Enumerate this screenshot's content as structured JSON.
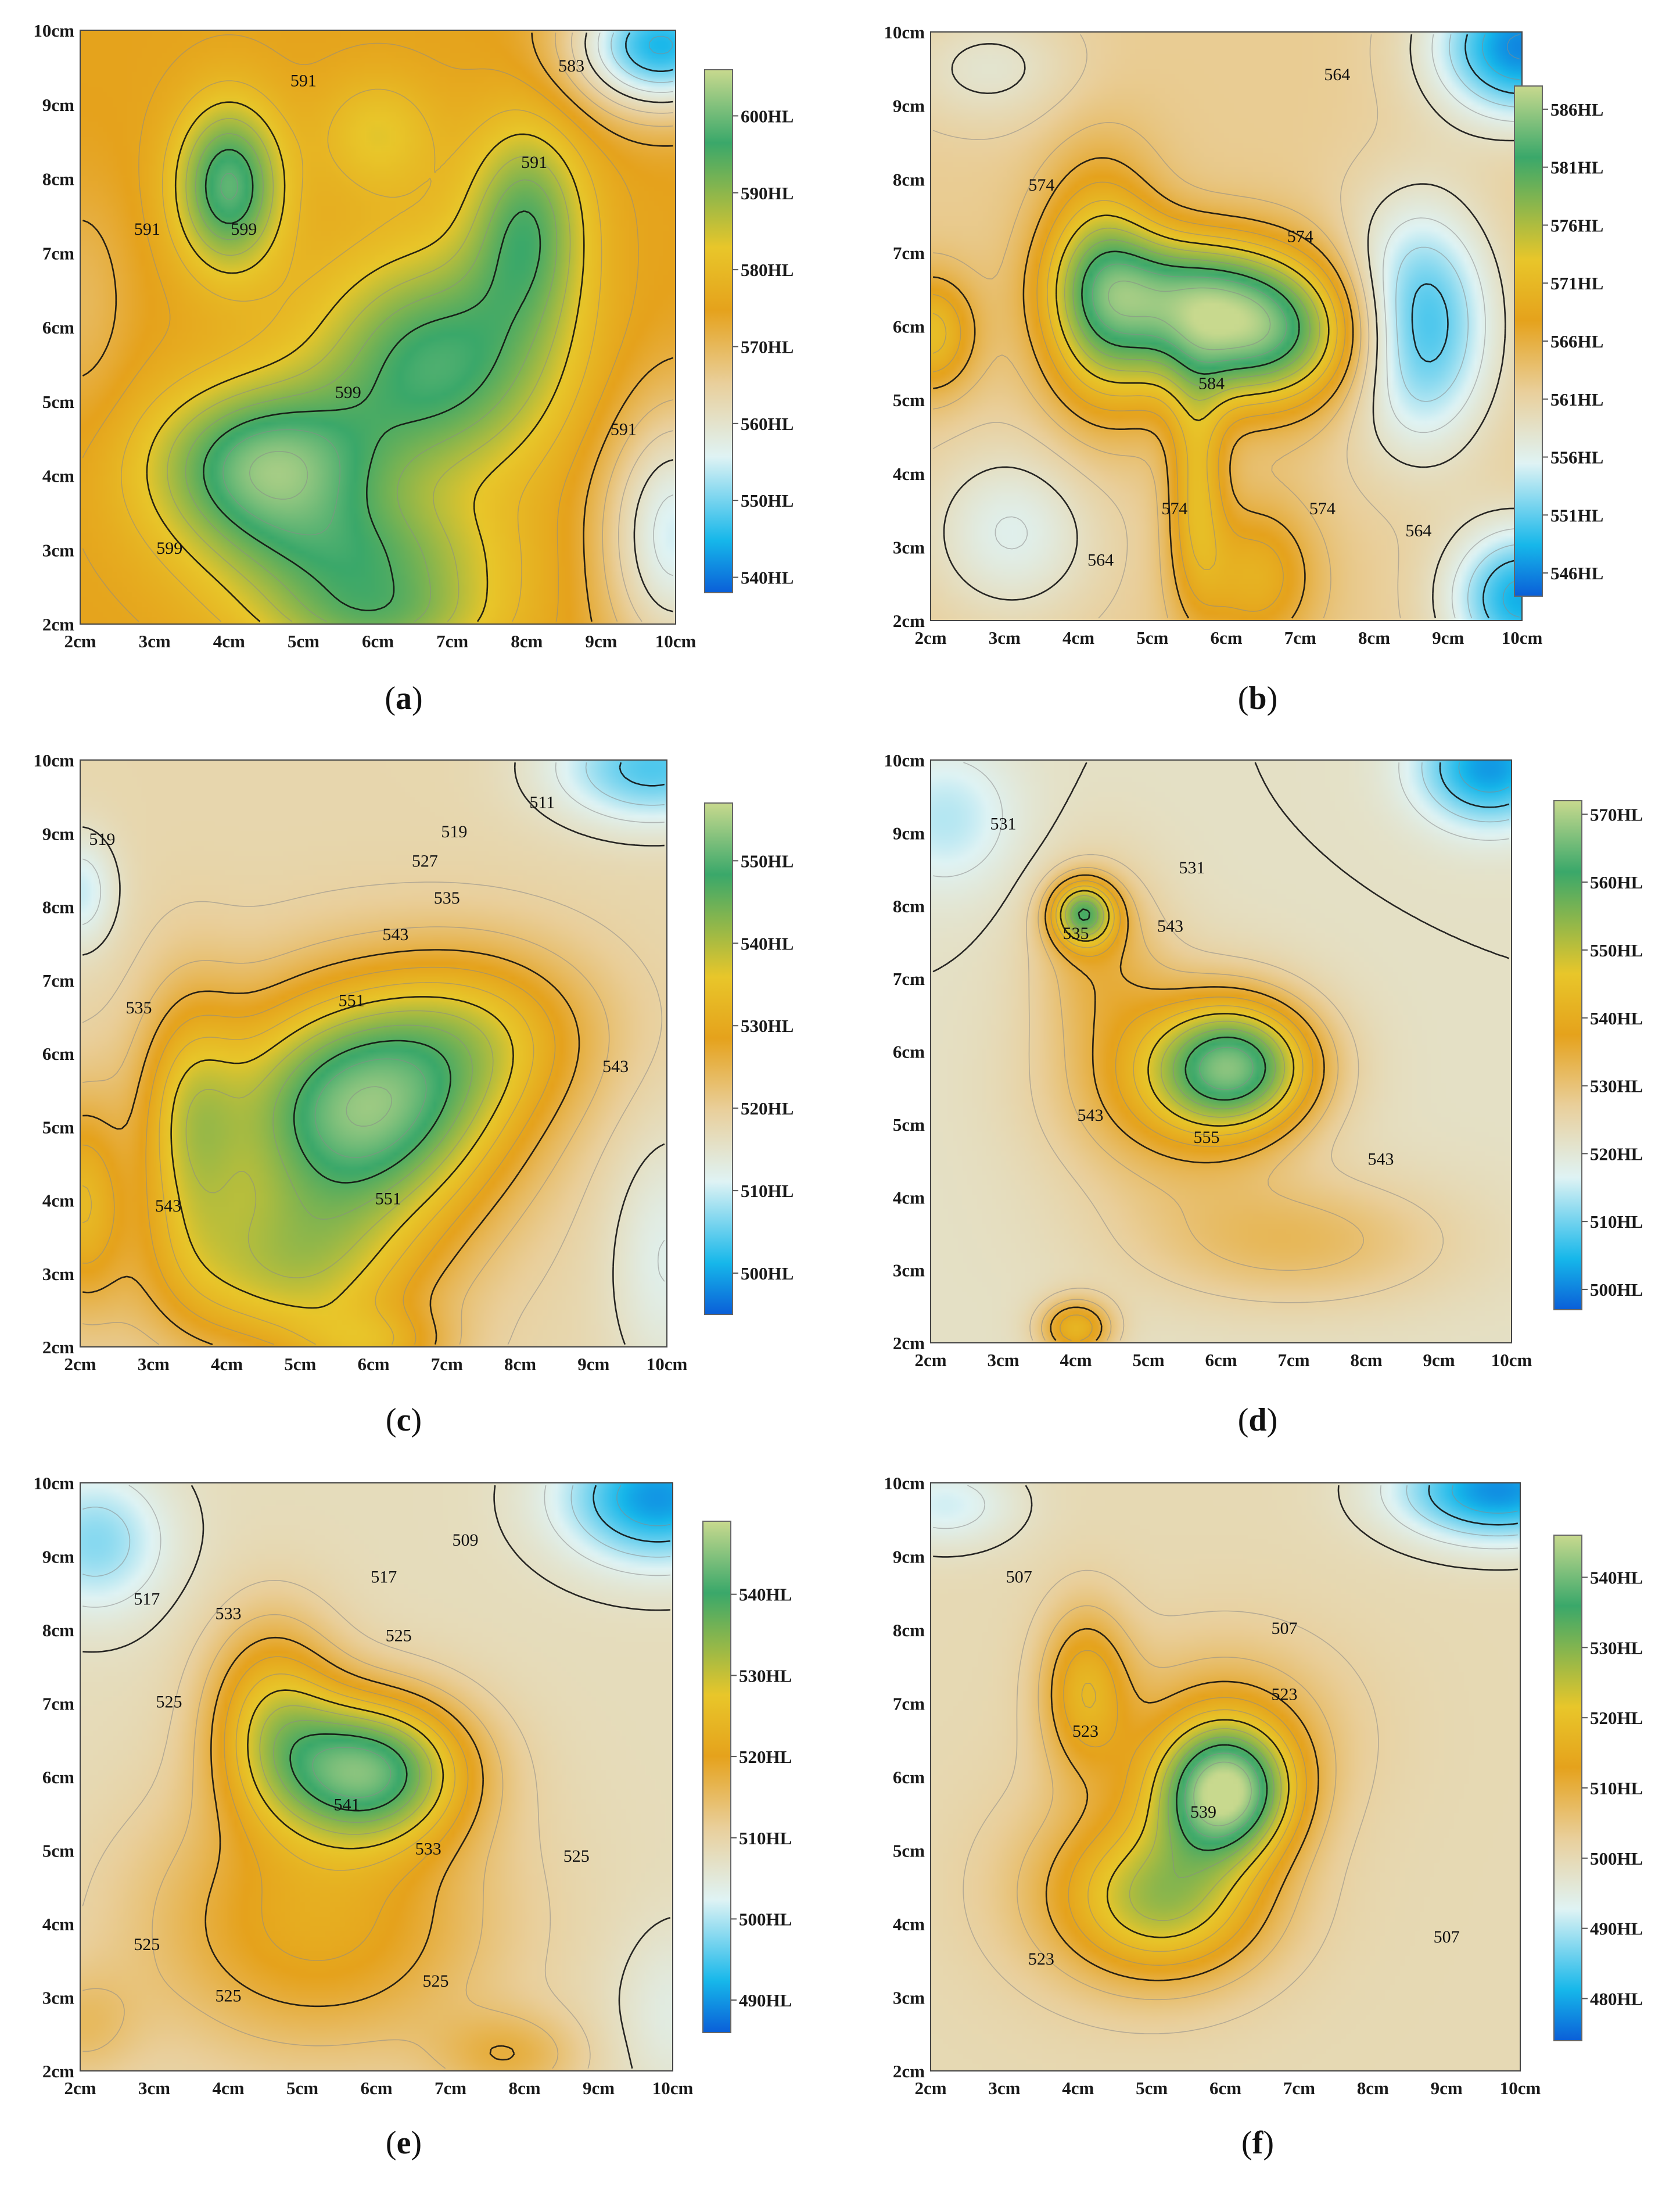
{
  "colors": {
    "scale_low": "#0a5fd8",
    "scale_light": "#dff3f4",
    "scale_sand": "#e9cf9b",
    "scale_orange": "#e5a21c",
    "scale_yellow": "#e8c62a",
    "scale_green": "#3aa86a",
    "scale_top": "#c8d98e",
    "contour_major": "#111111",
    "contour_minor": "#8a8a8a"
  },
  "chart_data": [
    {
      "type": "heatmap",
      "panel": "a",
      "x_ticks": [
        "2cm",
        "3cm",
        "4cm",
        "5cm",
        "6cm",
        "7cm",
        "8cm",
        "9cm",
        "10cm"
      ],
      "y_ticks": [
        "2cm",
        "3cm",
        "4cm",
        "5cm",
        "6cm",
        "7cm",
        "8cm",
        "9cm",
        "10cm"
      ],
      "xlim": [
        2,
        10
      ],
      "ylim": [
        2,
        10
      ],
      "colorbar": {
        "range": [
          538,
          606
        ],
        "ticks": [
          "540HL",
          "550HL",
          "560HL",
          "570HL",
          "580HL",
          "590HL",
          "600HL"
        ]
      },
      "contour_labels": [
        {
          "text": "591",
          "x": 5.0,
          "y": 9.3
        },
        {
          "text": "583",
          "x": 8.6,
          "y": 9.5
        },
        {
          "text": "599",
          "x": 4.2,
          "y": 7.3
        },
        {
          "text": "591",
          "x": 2.9,
          "y": 7.3
        },
        {
          "text": "591",
          "x": 8.1,
          "y": 8.2
        },
        {
          "text": "599",
          "x": 5.6,
          "y": 5.1
        },
        {
          "text": "591",
          "x": 9.3,
          "y": 4.6
        },
        {
          "text": "599",
          "x": 3.2,
          "y": 3.0
        }
      ],
      "field": {
        "base": 575,
        "bumps": [
          [
            4.5,
            4.1,
            26,
            1.5,
            1.1
          ],
          [
            4.0,
            7.9,
            24,
            0.7,
            1.1
          ],
          [
            6.8,
            5.5,
            22,
            1.6,
            1.5
          ],
          [
            8.0,
            7.4,
            18,
            0.8,
            1.4
          ],
          [
            5.8,
            2.8,
            16,
            1.8,
            0.9
          ],
          [
            6.0,
            8.6,
            8,
            0.8,
            0.8
          ],
          [
            10.0,
            3.2,
            -20,
            1.0,
            1.8
          ],
          [
            9.8,
            9.8,
            -30,
            1.2,
            0.9
          ],
          [
            2.0,
            6.3,
            -5,
            0.7,
            1.6
          ],
          [
            6.0,
            2.0,
            10,
            1.5,
            0.6
          ]
        ]
      }
    },
    {
      "type": "heatmap",
      "panel": "b",
      "x_ticks": [
        "2cm",
        "3cm",
        "4cm",
        "5cm",
        "6cm",
        "7cm",
        "8cm",
        "9cm",
        "10cm"
      ],
      "y_ticks": [
        "2cm",
        "3cm",
        "4cm",
        "5cm",
        "6cm",
        "7cm",
        "8cm",
        "9cm",
        "10cm"
      ],
      "xlim": [
        2,
        10
      ],
      "ylim": [
        2,
        10
      ],
      "colorbar": {
        "range": [
          544,
          588
        ],
        "ticks": [
          "546HL",
          "551HL",
          "556HL",
          "561HL",
          "566HL",
          "571HL",
          "576HL",
          "581HL",
          "586HL"
        ]
      },
      "contour_labels": [
        {
          "text": "564",
          "x": 7.5,
          "y": 9.4
        },
        {
          "text": "574",
          "x": 3.5,
          "y": 7.9
        },
        {
          "text": "574",
          "x": 7.0,
          "y": 7.2
        },
        {
          "text": "584",
          "x": 5.8,
          "y": 5.2
        },
        {
          "text": "574",
          "x": 5.3,
          "y": 3.5
        },
        {
          "text": "564",
          "x": 4.3,
          "y": 2.8
        },
        {
          "text": "574",
          "x": 7.3,
          "y": 3.5
        },
        {
          "text": "564",
          "x": 8.6,
          "y": 3.2
        }
      ],
      "field": {
        "base": 562,
        "bumps": [
          [
            6.3,
            5.9,
            22,
            1.6,
            1.0
          ],
          [
            4.3,
            6.5,
            14,
            0.8,
            1.6
          ],
          [
            5.4,
            6.6,
            10,
            1.4,
            0.8
          ],
          [
            2.0,
            5.9,
            10,
            0.6,
            0.8
          ],
          [
            5.6,
            3.8,
            9,
            0.4,
            1.6
          ],
          [
            6.4,
            2.6,
            8,
            0.8,
            1.0
          ],
          [
            8.6,
            6.0,
            -14,
            1.0,
            1.6
          ],
          [
            10.0,
            9.8,
            -16,
            1.2,
            1.0
          ],
          [
            10.0,
            2.3,
            -14,
            1.0,
            1.0
          ],
          [
            3.1,
            3.2,
            -6,
            1.2,
            1.2
          ],
          [
            2.8,
            9.5,
            -4,
            1.2,
            0.8
          ]
        ]
      }
    },
    {
      "type": "heatmap",
      "panel": "c",
      "x_ticks": [
        "2cm",
        "3cm",
        "4cm",
        "5cm",
        "6cm",
        "7cm",
        "8cm",
        "9cm",
        "10cm"
      ],
      "y_ticks": [
        "2cm",
        "3cm",
        "4cm",
        "5cm",
        "6cm",
        "7cm",
        "8cm",
        "9cm",
        "10cm"
      ],
      "xlim": [
        2,
        10
      ],
      "ylim": [
        2,
        10
      ],
      "colorbar": {
        "range": [
          495,
          557
        ],
        "ticks": [
          "500HL",
          "510HL",
          "520HL",
          "530HL",
          "540HL",
          "550HL"
        ]
      },
      "contour_labels": [
        {
          "text": "511",
          "x": 8.3,
          "y": 9.4
        },
        {
          "text": "519",
          "x": 7.1,
          "y": 9.0
        },
        {
          "text": "519",
          "x": 2.3,
          "y": 8.9
        },
        {
          "text": "527",
          "x": 6.7,
          "y": 8.6
        },
        {
          "text": "535",
          "x": 7.0,
          "y": 8.1
        },
        {
          "text": "543",
          "x": 6.3,
          "y": 7.6
        },
        {
          "text": "551",
          "x": 5.7,
          "y": 6.7
        },
        {
          "text": "535",
          "x": 2.8,
          "y": 6.6
        },
        {
          "text": "551",
          "x": 6.2,
          "y": 4.0
        },
        {
          "text": "543",
          "x": 9.3,
          "y": 5.8
        },
        {
          "text": "543",
          "x": 3.2,
          "y": 3.9
        }
      ],
      "field": {
        "base": 518,
        "bumps": [
          [
            5.8,
            5.2,
            34,
            1.9,
            1.6
          ],
          [
            4.8,
            3.0,
            18,
            1.8,
            1.2
          ],
          [
            3.5,
            5.0,
            14,
            0.7,
            1.8
          ],
          [
            7.5,
            6.3,
            12,
            1.6,
            1.2
          ],
          [
            6.0,
            2.0,
            10,
            1.0,
            0.5
          ],
          [
            2.0,
            4.0,
            14,
            0.6,
            1.4
          ],
          [
            9.8,
            9.9,
            -14,
            1.4,
            0.8
          ],
          [
            10.0,
            3.2,
            -6,
            0.8,
            1.8
          ],
          [
            2.0,
            8.2,
            -8,
            0.5,
            0.8
          ]
        ]
      }
    },
    {
      "type": "heatmap",
      "panel": "d",
      "x_ticks": [
        "2cm",
        "3cm",
        "4cm",
        "5cm",
        "6cm",
        "7cm",
        "8cm",
        "9cm",
        "10cm"
      ],
      "y_ticks": [
        "2cm",
        "3cm",
        "4cm",
        "5cm",
        "6cm",
        "7cm",
        "8cm",
        "9cm",
        "10cm"
      ],
      "xlim": [
        2,
        10
      ],
      "ylim": [
        2,
        10
      ],
      "colorbar": {
        "range": [
          497,
          572
        ],
        "ticks": [
          "500HL",
          "510HL",
          "520HL",
          "530HL",
          "540HL",
          "550HL",
          "560HL",
          "570HL"
        ]
      },
      "contour_labels": [
        {
          "text": "531",
          "x": 3.0,
          "y": 9.1
        },
        {
          "text": "531",
          "x": 5.6,
          "y": 8.5
        },
        {
          "text": "535",
          "x": 4.0,
          "y": 7.6
        },
        {
          "text": "543",
          "x": 5.3,
          "y": 7.7
        },
        {
          "text": "543",
          "x": 4.2,
          "y": 5.1
        },
        {
          "text": "555",
          "x": 5.8,
          "y": 4.8
        },
        {
          "text": "543",
          "x": 8.2,
          "y": 4.5
        }
      ],
      "field": {
        "base": 522,
        "bumps": [
          [
            6.2,
            5.8,
            36,
            1.1,
            0.9
          ],
          [
            4.1,
            7.9,
            30,
            0.45,
            0.45
          ],
          [
            5.2,
            5.5,
            14,
            1.6,
            1.4
          ],
          [
            4.3,
            7.4,
            10,
            0.9,
            1.2
          ],
          [
            4.0,
            2.2,
            20,
            0.5,
            0.4
          ],
          [
            7.0,
            3.4,
            10,
            2.2,
            0.9
          ],
          [
            9.7,
            9.9,
            -20,
            1.0,
            0.8
          ],
          [
            2.2,
            9.2,
            -8,
            1.0,
            1.0
          ]
        ]
      }
    },
    {
      "type": "heatmap",
      "panel": "e",
      "x_ticks": [
        "2cm",
        "3cm",
        "4cm",
        "5cm",
        "6cm",
        "7cm",
        "8cm",
        "9cm",
        "10cm"
      ],
      "y_ticks": [
        "2cm",
        "3cm",
        "4cm",
        "5cm",
        "6cm",
        "7cm",
        "8cm",
        "9cm",
        "10cm"
      ],
      "xlim": [
        2,
        10
      ],
      "ylim": [
        2,
        10
      ],
      "colorbar": {
        "range": [
          486,
          549
        ],
        "ticks": [
          "490HL",
          "500HL",
          "510HL",
          "520HL",
          "530HL",
          "540HL"
        ]
      },
      "contour_labels": [
        {
          "text": "509",
          "x": 7.2,
          "y": 9.2
        },
        {
          "text": "517",
          "x": 6.1,
          "y": 8.7
        },
        {
          "text": "517",
          "x": 2.9,
          "y": 8.4
        },
        {
          "text": "533",
          "x": 4.0,
          "y": 8.2
        },
        {
          "text": "525",
          "x": 6.3,
          "y": 7.9
        },
        {
          "text": "525",
          "x": 3.2,
          "y": 7.0
        },
        {
          "text": "541",
          "x": 5.6,
          "y": 5.6
        },
        {
          "text": "533",
          "x": 6.7,
          "y": 5.0
        },
        {
          "text": "525",
          "x": 8.7,
          "y": 4.9
        },
        {
          "text": "525",
          "x": 2.9,
          "y": 3.7
        },
        {
          "text": "525",
          "x": 4.0,
          "y": 3.0
        },
        {
          "text": "525",
          "x": 6.8,
          "y": 3.2
        }
      ],
      "field": {
        "base": 508,
        "bumps": [
          [
            5.9,
            6.1,
            32,
            1.3,
            1.0
          ],
          [
            4.6,
            6.9,
            16,
            0.9,
            1.3
          ],
          [
            5.2,
            4.0,
            14,
            2.4,
            1.8
          ],
          [
            7.8,
            2.2,
            8,
            1.0,
            0.6
          ],
          [
            2.0,
            2.6,
            6,
            0.8,
            0.8
          ],
          [
            9.8,
            9.8,
            -18,
            1.3,
            0.9
          ],
          [
            2.2,
            9.2,
            -10,
            1.0,
            1.0
          ],
          [
            10.0,
            2.8,
            -4,
            0.8,
            1.2
          ]
        ]
      }
    },
    {
      "type": "heatmap",
      "panel": "f",
      "x_ticks": [
        "2cm",
        "3cm",
        "4cm",
        "5cm",
        "6cm",
        "7cm",
        "8cm",
        "9cm",
        "10cm"
      ],
      "y_ticks": [
        "2cm",
        "3cm",
        "4cm",
        "5cm",
        "6cm",
        "7cm",
        "8cm",
        "9cm",
        "10cm"
      ],
      "xlim": [
        2,
        10
      ],
      "ylim": [
        2,
        10
      ],
      "colorbar": {
        "range": [
          474,
          546
        ],
        "ticks": [
          "480HL",
          "490HL",
          "500HL",
          "510HL",
          "520HL",
          "530HL",
          "540HL"
        ]
      },
      "contour_labels": [
        {
          "text": "507",
          "x": 3.2,
          "y": 8.7
        },
        {
          "text": "507",
          "x": 6.8,
          "y": 8.0
        },
        {
          "text": "523",
          "x": 6.8,
          "y": 7.1
        },
        {
          "text": "523",
          "x": 4.1,
          "y": 6.6
        },
        {
          "text": "539",
          "x": 5.7,
          "y": 5.5
        },
        {
          "text": "523",
          "x": 3.5,
          "y": 3.5
        },
        {
          "text": "507",
          "x": 9.0,
          "y": 3.8
        }
      ],
      "field": {
        "base": 500,
        "bumps": [
          [
            6.0,
            5.8,
            38,
            0.9,
            0.9
          ],
          [
            5.2,
            4.3,
            18,
            1.3,
            1.0
          ],
          [
            4.1,
            7.2,
            16,
            0.6,
            1.1
          ],
          [
            6.0,
            6.6,
            10,
            1.6,
            1.3
          ],
          [
            4.8,
            4.5,
            10,
            1.8,
            1.4
          ],
          [
            9.7,
            9.9,
            -22,
            1.4,
            0.7
          ],
          [
            2.2,
            9.7,
            -8,
            1.0,
            0.6
          ]
        ]
      }
    }
  ],
  "panels": [
    {
      "caption_open": "(",
      "caption_letter": "a",
      "caption_close": ")"
    },
    {
      "caption_open": "(",
      "caption_letter": "b",
      "caption_close": ")"
    },
    {
      "caption_open": "(",
      "caption_letter": "c",
      "caption_close": ")"
    },
    {
      "caption_open": "(",
      "caption_letter": "d",
      "caption_close": ")"
    },
    {
      "caption_open": "(",
      "caption_letter": "e",
      "caption_close": ")"
    },
    {
      "caption_open": "(",
      "caption_letter": "f",
      "caption_close": ")"
    }
  ]
}
